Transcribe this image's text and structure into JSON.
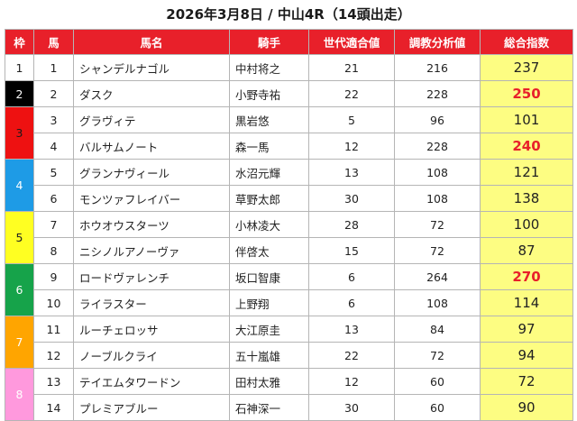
{
  "title": "2026年3月8日 / 中山4R（14頭出走）",
  "headers": {
    "waku": "枠",
    "umaban": "馬",
    "name": "馬名",
    "jockey": "騎手",
    "generation": "世代適合値",
    "training": "調教分析値",
    "total": "総合指数"
  },
  "frame_colors": {
    "1": "#ffffff",
    "2": "#000000",
    "3": "#ee1111",
    "4": "#1e9be6",
    "5": "#ffff22",
    "6": "#16a34a",
    "7": "#ffa500",
    "8": "#ff99dd"
  },
  "rows": [
    {
      "waku": "1",
      "umaban": "1",
      "name": "シャンデルナゴル",
      "jockey": "中村将之",
      "generation": "21",
      "training": "216",
      "total": "237",
      "highlight": false
    },
    {
      "waku": "2",
      "umaban": "2",
      "name": "ダスク",
      "jockey": "小野寺祐",
      "generation": "22",
      "training": "228",
      "total": "250",
      "highlight": true
    },
    {
      "waku": "3",
      "umaban": "3",
      "name": "グラヴィテ",
      "jockey": "黒岩悠",
      "generation": "5",
      "training": "96",
      "total": "101",
      "highlight": false
    },
    {
      "waku": "3",
      "umaban": "4",
      "name": "バルサムノート",
      "jockey": "森一馬",
      "generation": "12",
      "training": "228",
      "total": "240",
      "highlight": true
    },
    {
      "waku": "4",
      "umaban": "5",
      "name": "グランナヴィール",
      "jockey": "水沼元輝",
      "generation": "13",
      "training": "108",
      "total": "121",
      "highlight": false
    },
    {
      "waku": "4",
      "umaban": "6",
      "name": "モンツァフレイバー",
      "jockey": "草野太郎",
      "generation": "30",
      "training": "108",
      "total": "138",
      "highlight": false
    },
    {
      "waku": "5",
      "umaban": "7",
      "name": "ホウオウスターツ",
      "jockey": "小林凌大",
      "generation": "28",
      "training": "72",
      "total": "100",
      "highlight": false
    },
    {
      "waku": "5",
      "umaban": "8",
      "name": "ニシノルアノーヴァ",
      "jockey": "伴啓太",
      "generation": "15",
      "training": "72",
      "total": "87",
      "highlight": false
    },
    {
      "waku": "6",
      "umaban": "9",
      "name": "ロードヴァレンチ",
      "jockey": "坂口智康",
      "generation": "6",
      "training": "264",
      "total": "270",
      "highlight": true
    },
    {
      "waku": "6",
      "umaban": "10",
      "name": "ライラスター",
      "jockey": "上野翔",
      "generation": "6",
      "training": "108",
      "total": "114",
      "highlight": false
    },
    {
      "waku": "7",
      "umaban": "11",
      "name": "ルーチェロッサ",
      "jockey": "大江原圭",
      "generation": "13",
      "training": "84",
      "total": "97",
      "highlight": false
    },
    {
      "waku": "7",
      "umaban": "12",
      "name": "ノーブルクライ",
      "jockey": "五十嵐雄",
      "generation": "22",
      "training": "72",
      "total": "94",
      "highlight": false
    },
    {
      "waku": "8",
      "umaban": "13",
      "name": "テイエムタワードン",
      "jockey": "田村太雅",
      "generation": "12",
      "training": "60",
      "total": "72",
      "highlight": false
    },
    {
      "waku": "8",
      "umaban": "14",
      "name": "プレミアブルー",
      "jockey": "石神深一",
      "generation": "30",
      "training": "60",
      "total": "90",
      "highlight": false
    }
  ]
}
